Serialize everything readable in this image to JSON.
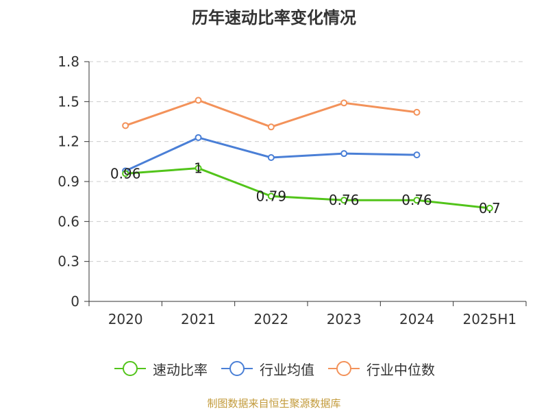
{
  "chart_data": {
    "type": "line",
    "title": "历年速动比率变化情况",
    "categories": [
      "2020",
      "2021",
      "2022",
      "2023",
      "2024",
      "2025H1"
    ],
    "ylim": [
      0,
      1.8
    ],
    "yticks": [
      "0",
      "0.3",
      "0.6",
      "0.9",
      "1.2",
      "1.5",
      "1.8"
    ],
    "grid": true,
    "legend_position": "bottom",
    "series": [
      {
        "name": "速动比率",
        "color": "#52c41a",
        "values": [
          0.96,
          1,
          0.79,
          0.76,
          0.76,
          0.7
        ],
        "data_labels": [
          "0.96",
          "1",
          "0.79",
          "0.76",
          "0.76",
          "0.7"
        ]
      },
      {
        "name": "行业均值",
        "color": "#4a7fd6",
        "values": [
          0.98,
          1.23,
          1.08,
          1.11,
          1.1,
          null
        ]
      },
      {
        "name": "行业中位数",
        "color": "#f3925a",
        "values": [
          1.32,
          1.51,
          1.31,
          1.49,
          1.42,
          null
        ]
      }
    ]
  },
  "source_note": "制图数据来自恒生聚源数据库"
}
